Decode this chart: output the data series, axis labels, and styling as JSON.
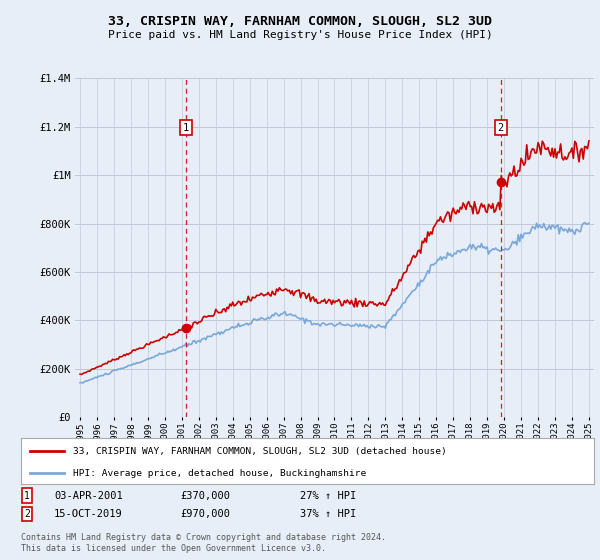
{
  "title": "33, CRISPIN WAY, FARNHAM COMMON, SLOUGH, SL2 3UD",
  "subtitle": "Price paid vs. HM Land Registry's House Price Index (HPI)",
  "ylim": [
    0,
    1400000
  ],
  "yticks": [
    0,
    200000,
    400000,
    600000,
    800000,
    1000000,
    1200000,
    1400000
  ],
  "ytick_labels": [
    "£0",
    "£200K",
    "£400K",
    "£600K",
    "£800K",
    "£1M",
    "£1.2M",
    "£1.4M"
  ],
  "bg_color": "#e8eef8",
  "plot_bg_color": "#e8eef8",
  "grid_color": "#c0c8d8",
  "house_color": "#cc0000",
  "hpi_color": "#7aa8d8",
  "marker1_date": 2001.25,
  "marker1_price": 370000,
  "marker2_date": 2019.79,
  "marker2_price": 970000,
  "legend_line1": "33, CRISPIN WAY, FARNHAM COMMON, SLOUGH, SL2 3UD (detached house)",
  "legend_line2": "HPI: Average price, detached house, Buckinghamshire",
  "footnote": "Contains HM Land Registry data © Crown copyright and database right 2024.\nThis data is licensed under the Open Government Licence v3.0.",
  "note1_date": "03-APR-2001",
  "note1_price": "£370,000",
  "note1_pct": "27% ↑ HPI",
  "note2_date": "15-OCT-2019",
  "note2_price": "£970,000",
  "note2_pct": "37% ↑ HPI",
  "xlim_left": 1994.7,
  "xlim_right": 2025.3
}
